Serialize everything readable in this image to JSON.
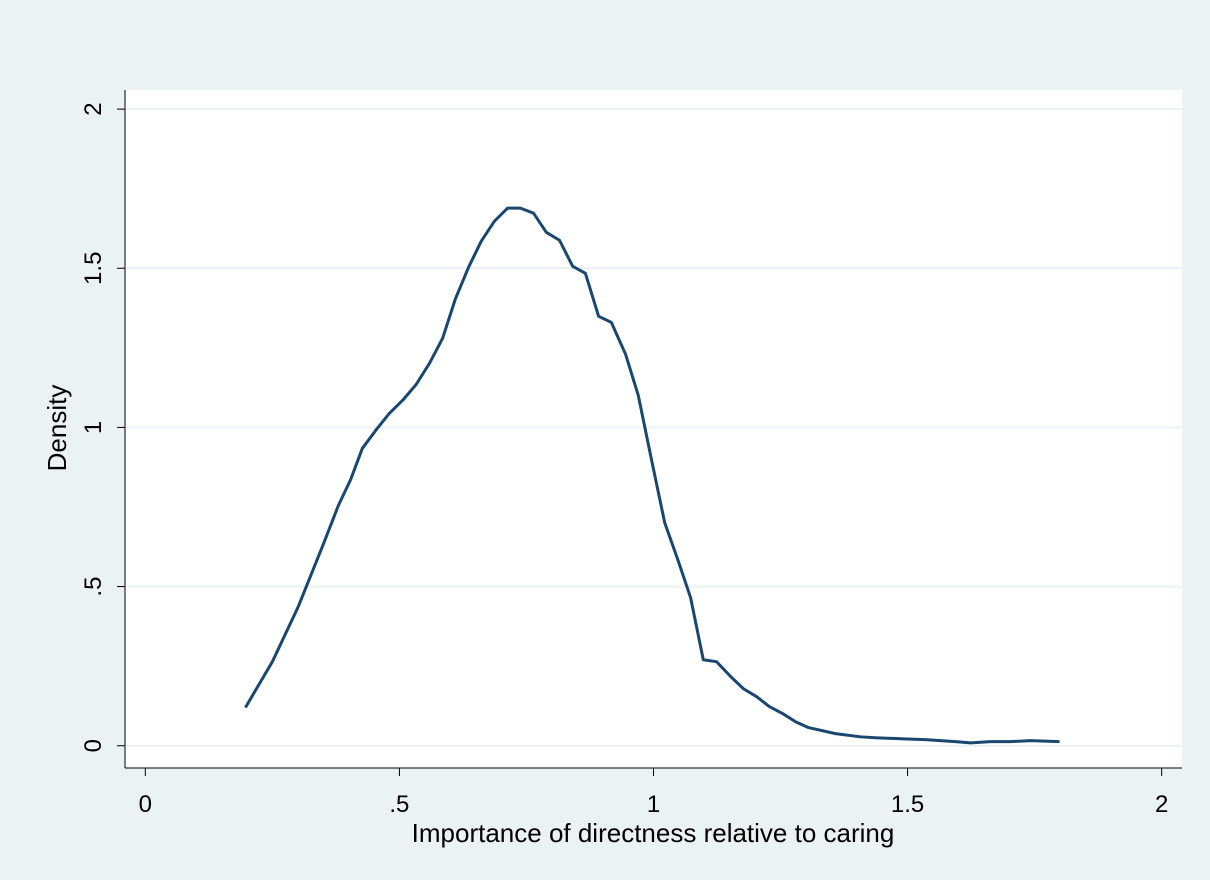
{
  "chart_data": {
    "type": "line",
    "xlabel": "Importance of directness relative to caring",
    "ylabel": "Density",
    "x": [
      0.197,
      0.25,
      0.301,
      0.35,
      0.38,
      0.404,
      0.427,
      0.455,
      0.48,
      0.508,
      0.533,
      0.559,
      0.585,
      0.61,
      0.636,
      0.661,
      0.687,
      0.713,
      0.738,
      0.764,
      0.789,
      0.815,
      0.841,
      0.866,
      0.892,
      0.917,
      0.945,
      0.97,
      0.996,
      1.022,
      1.049,
      1.073,
      1.098,
      1.124,
      1.152,
      1.177,
      1.203,
      1.228,
      1.254,
      1.28,
      1.305,
      1.358,
      1.407,
      1.437,
      1.486,
      1.535,
      1.594,
      1.624,
      1.663,
      1.703,
      1.742,
      1.799
    ],
    "series": [
      {
        "color": "#1a476f",
        "values": [
          0.12,
          0.264,
          0.437,
          0.632,
          0.755,
          0.836,
          0.934,
          0.994,
          1.044,
          1.088,
          1.135,
          1.201,
          1.28,
          1.403,
          1.503,
          1.585,
          1.648,
          1.689,
          1.689,
          1.673,
          1.613,
          1.588,
          1.506,
          1.484,
          1.349,
          1.33,
          1.23,
          1.101,
          0.899,
          0.701,
          0.579,
          0.465,
          0.27,
          0.264,
          0.217,
          0.179,
          0.154,
          0.123,
          0.101,
          0.075,
          0.057,
          0.038,
          0.028,
          0.025,
          0.022,
          0.019,
          0.013,
          0.009,
          0.013,
          0.013,
          0.016,
          0.013
        ]
      }
    ],
    "xlim": [
      -0.04,
      2.04
    ],
    "ylim": [
      -0.07,
      2.06
    ],
    "xticks": [
      0,
      {
        "value": 0.5,
        "label": ".5"
      },
      1,
      1.5,
      2
    ],
    "yticks": [
      0,
      {
        "value": 0.5,
        "label": ".5"
      },
      1,
      1.5,
      2
    ],
    "grid": true
  }
}
